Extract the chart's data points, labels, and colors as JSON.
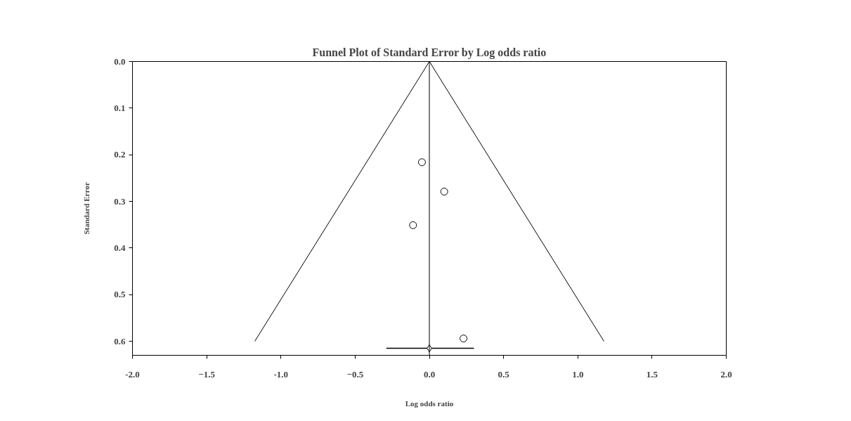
{
  "chart_data": {
    "type": "scatter",
    "title": "Funnel Plot of Standard Error by Log odds ratio",
    "xlabel": "Log odds ratio",
    "ylabel": "Standard Error",
    "series": [
      {
        "color": "#000000",
        "marker": "circle",
        "x": [
          -0.05,
          0.1,
          -0.11,
          0.23
        ],
        "values": [
          0.216,
          0.279,
          0.351,
          0.594
        ]
      },
      {
        "type": "line",
        "color": "#000000",
        "marker": "none",
        "x": [
          -1.176,
          0,
          1.176
        ],
        "values": [
          0.6,
          0,
          0.6
        ]
      },
      {
        "type": "scatter",
        "color": "#000000",
        "marker": "diamond",
        "x": [
          0.0
        ],
        "values": [
          0.615
        ],
        "xerrors": [
          [
            -0.29,
            0.3
          ]
        ]
      }
    ],
    "xlim": [
      -2,
      2
    ],
    "ylim": [
      0.63,
      0
    ],
    "xticks": [
      {
        "value": -2,
        "label": "-2.0"
      },
      -1.5,
      {
        "value": -1,
        "label": "-1.0"
      },
      -0.5,
      {
        "value": 0,
        "label": "0.0"
      },
      0.5,
      {
        "value": 1,
        "label": "1.0"
      },
      1.5,
      {
        "value": 2,
        "label": "2.0"
      }
    ],
    "yticks": [
      {
        "value": 0,
        "label": "0.0"
      },
      0.1,
      0.2,
      0.3,
      0.4,
      0.5,
      0.6
    ],
    "ref_lines": [
      {
        "axis": "x",
        "value": 0
      }
    ],
    "grid": false
  }
}
